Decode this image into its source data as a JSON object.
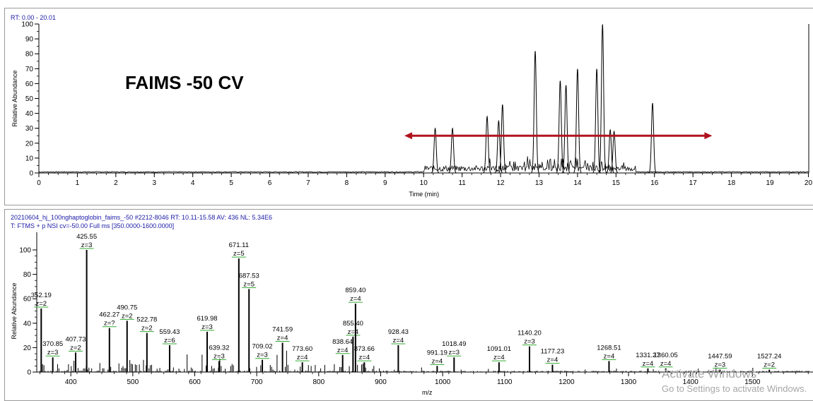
{
  "chromatogram": {
    "header": "RT: 0.00 - 20.01",
    "overlay_text": "FAIMS -50 CV",
    "arrow_color": "#b0141e",
    "chart_data": {
      "type": "line",
      "xlabel": "Time (min)",
      "ylabel": "Relative Abundance",
      "xlim": [
        0,
        20.01
      ],
      "ylim": [
        0,
        100
      ],
      "x_ticks": [
        0,
        1,
        2,
        3,
        4,
        5,
        6,
        7,
        8,
        9,
        10,
        11,
        12,
        13,
        14,
        15,
        16,
        17,
        18,
        19,
        20
      ],
      "y_ticks": [
        0,
        10,
        20,
        30,
        40,
        50,
        60,
        70,
        80,
        90,
        100
      ],
      "peaks": [
        {
          "rt": 10.3,
          "height": 30
        },
        {
          "rt": 10.75,
          "height": 30
        },
        {
          "rt": 11.65,
          "height": 38
        },
        {
          "rt": 11.95,
          "height": 35
        },
        {
          "rt": 12.05,
          "height": 46
        },
        {
          "rt": 12.9,
          "height": 82
        },
        {
          "rt": 13.55,
          "height": 62
        },
        {
          "rt": 13.7,
          "height": 59
        },
        {
          "rt": 14.0,
          "height": 70
        },
        {
          "rt": 14.5,
          "height": 70
        },
        {
          "rt": 14.65,
          "height": 100
        },
        {
          "rt": 14.85,
          "height": 29
        },
        {
          "rt": 14.95,
          "height": 28
        },
        {
          "rt": 15.95,
          "height": 47
        }
      ],
      "arrow": {
        "x_start": 9.5,
        "x_end": 17.5,
        "y": 25
      }
    }
  },
  "spectrum": {
    "header_line1": "20210604_hj_100nghaptoglobin_faims_-50 #2212-8046  RT: 10.11-15.58  AV: 436  NL: 5.34E6",
    "header_line2": "T: FTMS + p NSI cv=-50.00  Full ms [350.0000-1600.0000]",
    "chart_data": {
      "type": "bar",
      "xlabel": "m/z",
      "ylabel": "Relative Abundance",
      "xlim": [
        345,
        1600
      ],
      "ylim": [
        0,
        100
      ],
      "x_ticks": [
        400,
        500,
        600,
        700,
        800,
        900,
        1000,
        1100,
        1200,
        1300,
        1400,
        1500
      ],
      "y_ticks": [
        0,
        20,
        40,
        60,
        80,
        100
      ],
      "peaks": [
        {
          "mz": 352.19,
          "z": "z=2",
          "intensity": 52
        },
        {
          "mz": 370.85,
          "z": "z=3",
          "intensity": 12
        },
        {
          "mz": 407.73,
          "z": "z=2",
          "intensity": 16
        },
        {
          "mz": 425.55,
          "z": "z=3",
          "intensity": 100
        },
        {
          "mz": 462.27,
          "z": "z=?",
          "intensity": 36
        },
        {
          "mz": 490.75,
          "z": "z=2",
          "intensity": 42
        },
        {
          "mz": 522.78,
          "z": "z=2",
          "intensity": 32
        },
        {
          "mz": 559.43,
          "z": "z=6",
          "intensity": 22
        },
        {
          "mz": 619.98,
          "z": "z=3",
          "intensity": 33
        },
        {
          "mz": 639.32,
          "z": "z=3",
          "intensity": 9
        },
        {
          "mz": 671.11,
          "z": "z=5",
          "intensity": 93
        },
        {
          "mz": 687.53,
          "z": "z=5",
          "intensity": 68
        },
        {
          "mz": 709.02,
          "z": "z=3",
          "intensity": 10
        },
        {
          "mz": 741.59,
          "z": "z=4",
          "intensity": 24
        },
        {
          "mz": 773.6,
          "z": "z=4",
          "intensity": 8
        },
        {
          "mz": 838.64,
          "z": "z=4",
          "intensity": 14
        },
        {
          "mz": 855.4,
          "z": "z=4",
          "intensity": 29
        },
        {
          "mz": 859.4,
          "z": "z=4",
          "intensity": 56
        },
        {
          "mz": 873.66,
          "z": "z=4",
          "intensity": 8
        },
        {
          "mz": 928.43,
          "z": "z=4",
          "intensity": 22
        },
        {
          "mz": 991.19,
          "z": "z=4",
          "intensity": 5
        },
        {
          "mz": 1018.49,
          "z": "z=3",
          "intensity": 12
        },
        {
          "mz": 1091.01,
          "z": "z=4",
          "intensity": 8
        },
        {
          "mz": 1140.2,
          "z": "z=3",
          "intensity": 21
        },
        {
          "mz": 1177.23,
          "z": "z=4",
          "intensity": 6
        },
        {
          "mz": 1268.51,
          "z": "z=4",
          "intensity": 9
        },
        {
          "mz": 1331.27,
          "z": "z=4",
          "intensity": 3
        },
        {
          "mz": 1360.05,
          "z": "z=4",
          "intensity": 3
        },
        {
          "mz": 1447.59,
          "z": "z=3",
          "intensity": 2
        },
        {
          "mz": 1527.24,
          "z": "z=2",
          "intensity": 2
        }
      ]
    }
  },
  "watermark": {
    "line1": "Activate Windows",
    "line2": "Go to Settings to activate Windows."
  }
}
